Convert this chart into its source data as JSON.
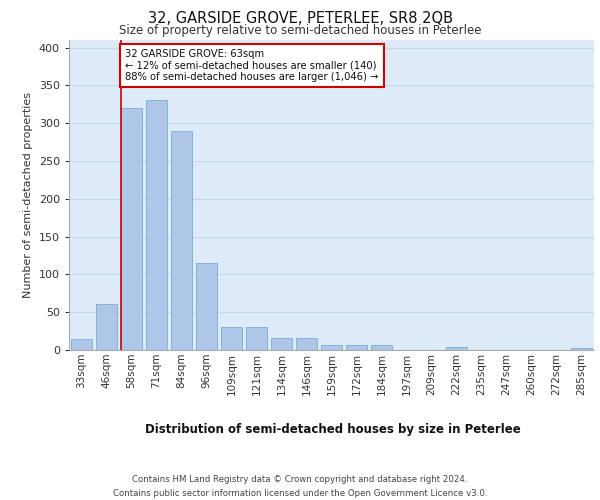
{
  "title": "32, GARSIDE GROVE, PETERLEE, SR8 2QB",
  "subtitle": "Size of property relative to semi-detached houses in Peterlee",
  "xlabel": "Distribution of semi-detached houses by size in Peterlee",
  "ylabel": "Number of semi-detached properties",
  "categories": [
    "33sqm",
    "46sqm",
    "58sqm",
    "71sqm",
    "84sqm",
    "96sqm",
    "109sqm",
    "121sqm",
    "134sqm",
    "146sqm",
    "159sqm",
    "172sqm",
    "184sqm",
    "197sqm",
    "209sqm",
    "222sqm",
    "235sqm",
    "247sqm",
    "260sqm",
    "272sqm",
    "285sqm"
  ],
  "values": [
    14,
    61,
    320,
    330,
    289,
    115,
    30,
    30,
    16,
    16,
    7,
    6,
    6,
    0,
    0,
    4,
    0,
    0,
    0,
    0,
    2
  ],
  "bar_color": "#aec6e8",
  "bar_edge_color": "#7aaed0",
  "property_label": "32 GARSIDE GROVE: 63sqm",
  "pct_smaller": 12,
  "pct_larger": 88,
  "n_smaller": 140,
  "n_larger": 1046,
  "red_line_x": 1.57,
  "annotation_box_color": "#ffffff",
  "annotation_box_edge_color": "#cc0000",
  "ylim": [
    0,
    410
  ],
  "yticks": [
    0,
    50,
    100,
    150,
    200,
    250,
    300,
    350,
    400
  ],
  "grid_color": "#c8d8e8",
  "background_color": "#ddeaf7",
  "footer_line1": "Contains HM Land Registry data © Crown copyright and database right 2024.",
  "footer_line2": "Contains public sector information licensed under the Open Government Licence v3.0."
}
